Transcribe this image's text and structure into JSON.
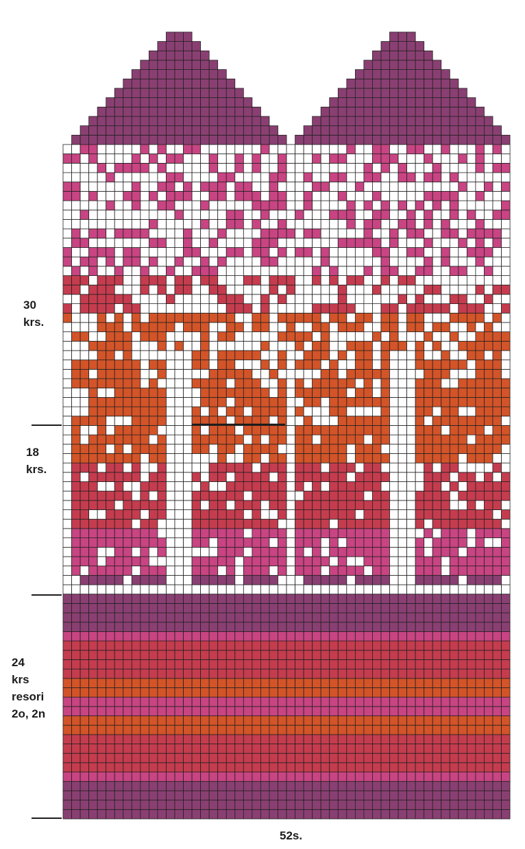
{
  "labels": {
    "top_section": [
      "30",
      "krs."
    ],
    "middle_section": [
      "18",
      "krs."
    ],
    "cuff_section": [
      "24",
      "krs",
      "resori",
      "2o, 2n"
    ],
    "stitches": "52s."
  },
  "colors": {
    "background": "#ffffff",
    "grid_line": "#222222",
    "plum": "#8a3f72",
    "pink": "#c84482",
    "red": "#c53c4e",
    "orange": "#d35428",
    "empty": "#ffffff"
  },
  "pattern": {
    "stitches": 52,
    "rows_total": 79,
    "cuff_rows": 24,
    "hand_rows": 48,
    "tip_rows": 7,
    "cuff_stripes": [
      "plum",
      "plum",
      "plum",
      "plum",
      "pink",
      "red",
      "red",
      "red",
      "red",
      "orange",
      "orange",
      "pink",
      "pink",
      "orange",
      "orange",
      "red",
      "red",
      "red",
      "red",
      "pink",
      "plum",
      "plum",
      "plum",
      "plum"
    ]
  }
}
